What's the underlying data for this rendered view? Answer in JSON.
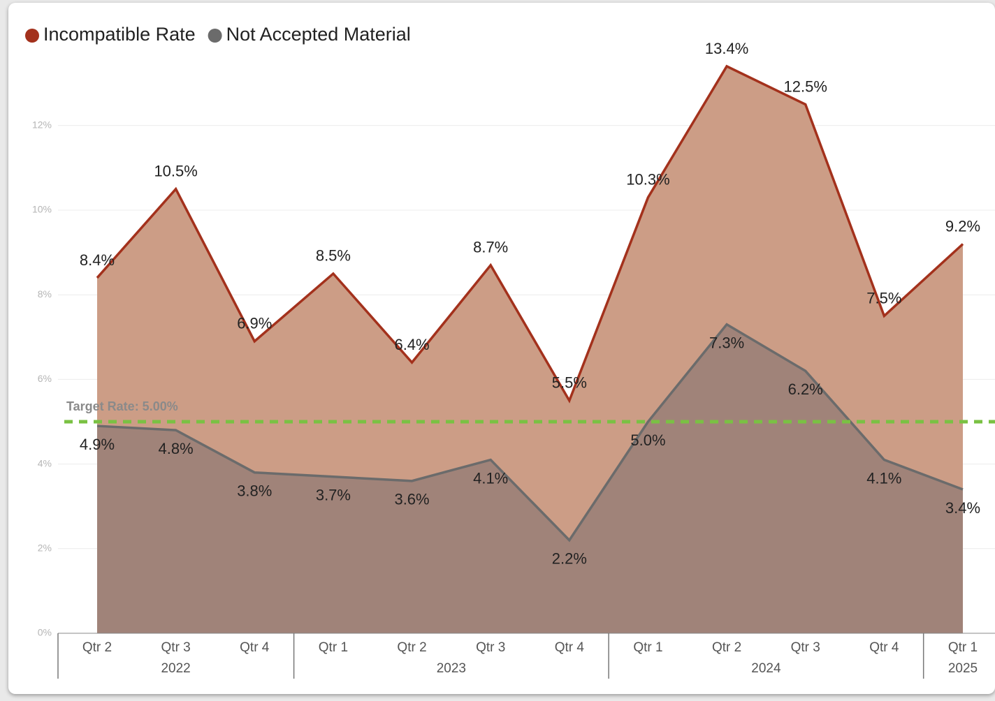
{
  "chart_data": {
    "type": "area",
    "categories": [
      "Qtr 2",
      "Qtr 3",
      "Qtr 4",
      "Qtr 1",
      "Qtr 2",
      "Qtr 3",
      "Qtr 4",
      "Qtr 1",
      "Qtr 2",
      "Qtr 3",
      "Qtr 4",
      "Qtr 1"
    ],
    "groups": [
      {
        "label": "2022",
        "count": 3
      },
      {
        "label": "2023",
        "count": 4
      },
      {
        "label": "2024",
        "count": 4
      },
      {
        "label": "2025",
        "count": 1
      }
    ],
    "series": [
      {
        "name": "Incompatible Rate",
        "color": "#a3311c",
        "fill": "#cc9d86",
        "values": [
          8.4,
          10.5,
          6.9,
          8.5,
          6.4,
          8.7,
          5.5,
          10.3,
          13.4,
          12.5,
          7.5,
          9.2
        ],
        "value_labels": [
          "8.4%",
          "10.5%",
          "6.9%",
          "8.5%",
          "6.4%",
          "8.7%",
          "5.5%",
          "10.3%",
          "13.4%",
          "12.5%",
          "7.5%",
          "9.2%"
        ]
      },
      {
        "name": "Not Accepted Material",
        "color": "#6b6b6b",
        "fill": "#a08379",
        "values": [
          4.9,
          4.8,
          3.8,
          3.7,
          3.6,
          4.1,
          2.2,
          5.0,
          7.3,
          6.2,
          4.1,
          3.4
        ],
        "value_labels": [
          "4.9%",
          "4.8%",
          "3.8%",
          "3.7%",
          "3.6%",
          "4.1%",
          "2.2%",
          "5.0%",
          "7.3%",
          "6.2%",
          "4.1%",
          "3.4%"
        ]
      }
    ],
    "target": {
      "value": 5,
      "label": "Target Rate: 5.00%",
      "color": "#7ac143"
    },
    "ylim": [
      0,
      14
    ],
    "yticks": [
      {
        "value": 0,
        "label": "0%"
      },
      {
        "value": 2,
        "label": "2%"
      },
      {
        "value": 4,
        "label": "4%"
      },
      {
        "value": 6,
        "label": "6%"
      },
      {
        "value": 8,
        "label": "8%"
      },
      {
        "value": 10,
        "label": "10%"
      },
      {
        "value": 12,
        "label": "12%"
      }
    ],
    "grid": true,
    "legend": "top-left"
  }
}
